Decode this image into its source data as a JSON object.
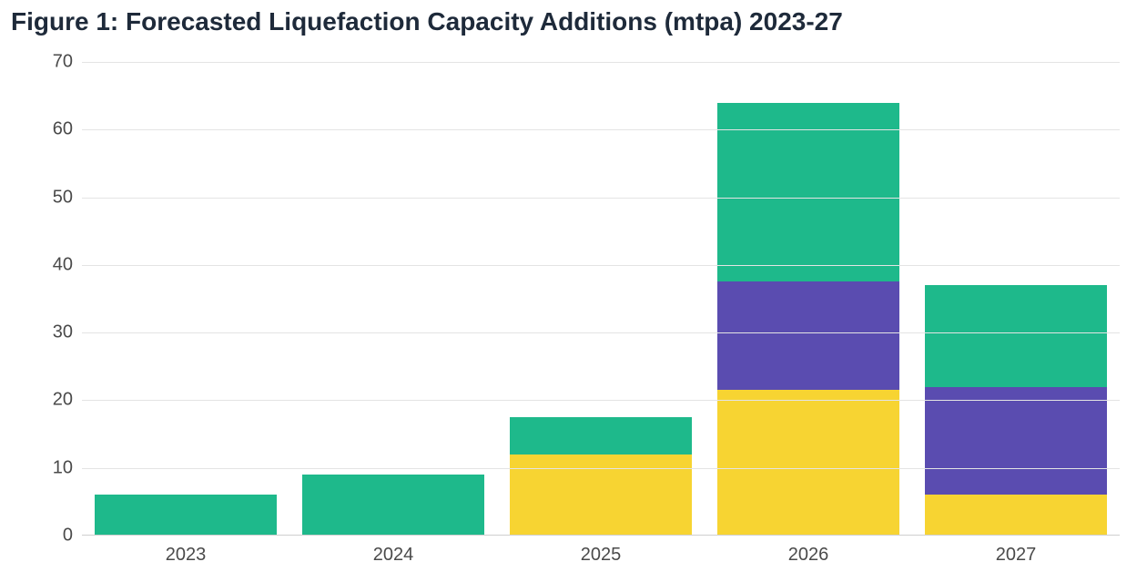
{
  "chart": {
    "type": "stacked-bar",
    "title": "Figure 1: Forecasted Liquefaction Capacity Additions (mtpa) 2023-27",
    "title_fontsize": 28,
    "title_color": "#1e2a3a",
    "background_color": "#ffffff",
    "categories": [
      "2023",
      "2024",
      "2025",
      "2026",
      "2027"
    ],
    "series": {
      "yellow": {
        "color": "#f7d432",
        "values": [
          0,
          0,
          12,
          21.5,
          6
        ]
      },
      "purple": {
        "color": "#5a4cb0",
        "values": [
          0,
          0,
          0,
          16,
          16
        ]
      },
      "green": {
        "color": "#1eb98b",
        "values": [
          6,
          9,
          5.5,
          26.5,
          15
        ]
      }
    },
    "stack_order": [
      "yellow",
      "purple",
      "green"
    ],
    "totals": [
      6,
      9,
      17.5,
      64,
      37
    ],
    "ylim": [
      0,
      70
    ],
    "ytick_step": 10,
    "yticks": [
      0,
      10,
      20,
      30,
      40,
      50,
      60,
      70
    ],
    "grid_color": "#e4e4e4",
    "baseline_color": "#cfcfcf",
    "axis_label_color": "#4a4a4a",
    "axis_label_fontsize": 20,
    "y_label_fontsize": 20,
    "bar_width_ratio": 0.88
  }
}
